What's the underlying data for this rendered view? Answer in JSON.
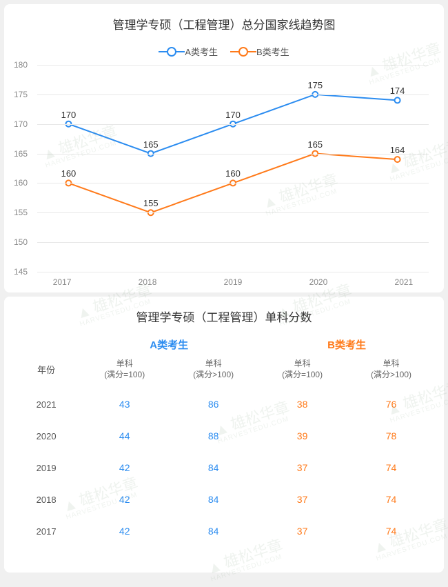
{
  "chart": {
    "type": "line",
    "title": "管理学专硕（工程管理）总分国家线趋势图",
    "legend": [
      {
        "label": "A类考生",
        "color": "#2b8cf0"
      },
      {
        "label": "B类考生",
        "color": "#ff7a1a"
      }
    ],
    "x_categories": [
      "2017",
      "2018",
      "2019",
      "2020",
      "2021"
    ],
    "ylim": [
      145,
      180
    ],
    "ytick_step": 5,
    "yticks": [
      145,
      150,
      155,
      160,
      165,
      170,
      175,
      180
    ],
    "series": [
      {
        "name": "A类考生",
        "color": "#2b8cf0",
        "values": [
          170,
          165,
          170,
          175,
          174
        ],
        "line_width": 2,
        "marker": "circle",
        "marker_size": 6
      },
      {
        "name": "B类考生",
        "color": "#ff7a1a",
        "values": [
          160,
          155,
          160,
          165,
          164
        ],
        "line_width": 2,
        "marker": "circle",
        "marker_size": 6
      }
    ],
    "background_color": "#ffffff",
    "grid_color": "#e8e8e8",
    "axis_label_color": "#888888",
    "point_label_color": "#333333",
    "point_label_fontsize": 13,
    "title_fontsize": 17
  },
  "table": {
    "title": "管理学专硕（工程管理）单科分数",
    "group_headers": [
      {
        "label": "A类考生",
        "color": "#2b8cf0"
      },
      {
        "label": "B类考生",
        "color": "#ff7a1a"
      }
    ],
    "year_header": "年份",
    "sub_headers": [
      "单科\n(满分=100)",
      "单科\n(满分>100)",
      "单科\n(满分=100)",
      "单科\n(满分>100)"
    ],
    "rows": [
      {
        "year": "2021",
        "a1": 43,
        "a2": 86,
        "b1": 38,
        "b2": 76
      },
      {
        "year": "2020",
        "a1": 44,
        "a2": 88,
        "b1": 39,
        "b2": 78
      },
      {
        "year": "2019",
        "a1": 42,
        "a2": 84,
        "b1": 37,
        "b2": 74
      },
      {
        "year": "2018",
        "a1": 42,
        "a2": 84,
        "b1": 37,
        "b2": 74
      },
      {
        "year": "2017",
        "a1": 42,
        "a2": 84,
        "b1": 37,
        "b2": 74
      }
    ]
  },
  "watermark": {
    "text": "雄松华章",
    "sub": "HARVESTEDU.COM"
  }
}
